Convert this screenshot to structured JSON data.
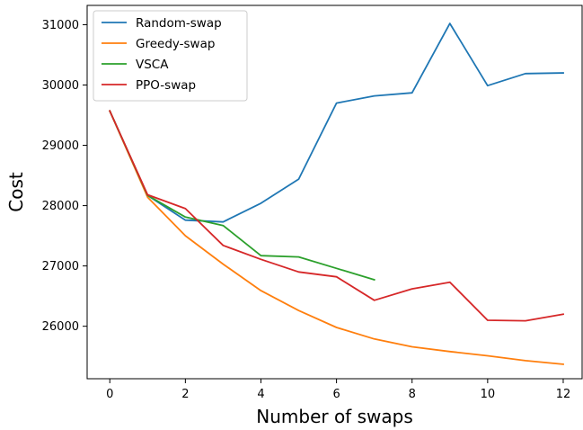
{
  "chart_data": {
    "type": "line",
    "title": "",
    "xlabel": "Number of swaps",
    "ylabel": "Cost",
    "xlim": [
      -0.6,
      12.5
    ],
    "ylim": [
      25130,
      31320
    ],
    "xticks": [
      0,
      2,
      4,
      6,
      8,
      10,
      12
    ],
    "yticks": [
      26000,
      27000,
      28000,
      29000,
      30000,
      31000
    ],
    "grid": false,
    "legend_position": "top-left",
    "series": [
      {
        "name": "Random-swap",
        "color": "#1f77b4",
        "x": [
          0,
          1,
          2,
          3,
          4,
          5,
          6,
          7,
          8,
          9,
          10,
          11,
          12
        ],
        "y": [
          29570,
          28170,
          27760,
          27730,
          28040,
          28440,
          29700,
          29820,
          29870,
          31020,
          29990,
          30190,
          30200
        ]
      },
      {
        "name": "Greedy-swap",
        "color": "#ff7f0e",
        "x": [
          0,
          1,
          2,
          3,
          4,
          5,
          6,
          7,
          8,
          9,
          10,
          11,
          12
        ],
        "y": [
          29570,
          28140,
          27500,
          27030,
          26590,
          26260,
          25980,
          25790,
          25660,
          25580,
          25510,
          25430,
          25370
        ]
      },
      {
        "name": "VSCA",
        "color": "#2ca02c",
        "x": [
          0,
          1,
          2,
          3,
          4,
          5,
          6,
          7
        ],
        "y": [
          29570,
          28170,
          27810,
          27670,
          27170,
          27150,
          26960,
          26770
        ]
      },
      {
        "name": "PPO-swap",
        "color": "#d62728",
        "x": [
          0,
          1,
          2,
          3,
          4,
          5,
          6,
          7,
          8,
          9,
          10,
          11,
          12
        ],
        "y": [
          29570,
          28180,
          27950,
          27340,
          27110,
          26900,
          26820,
          26430,
          26620,
          26730,
          26100,
          26090,
          26200
        ]
      }
    ]
  }
}
